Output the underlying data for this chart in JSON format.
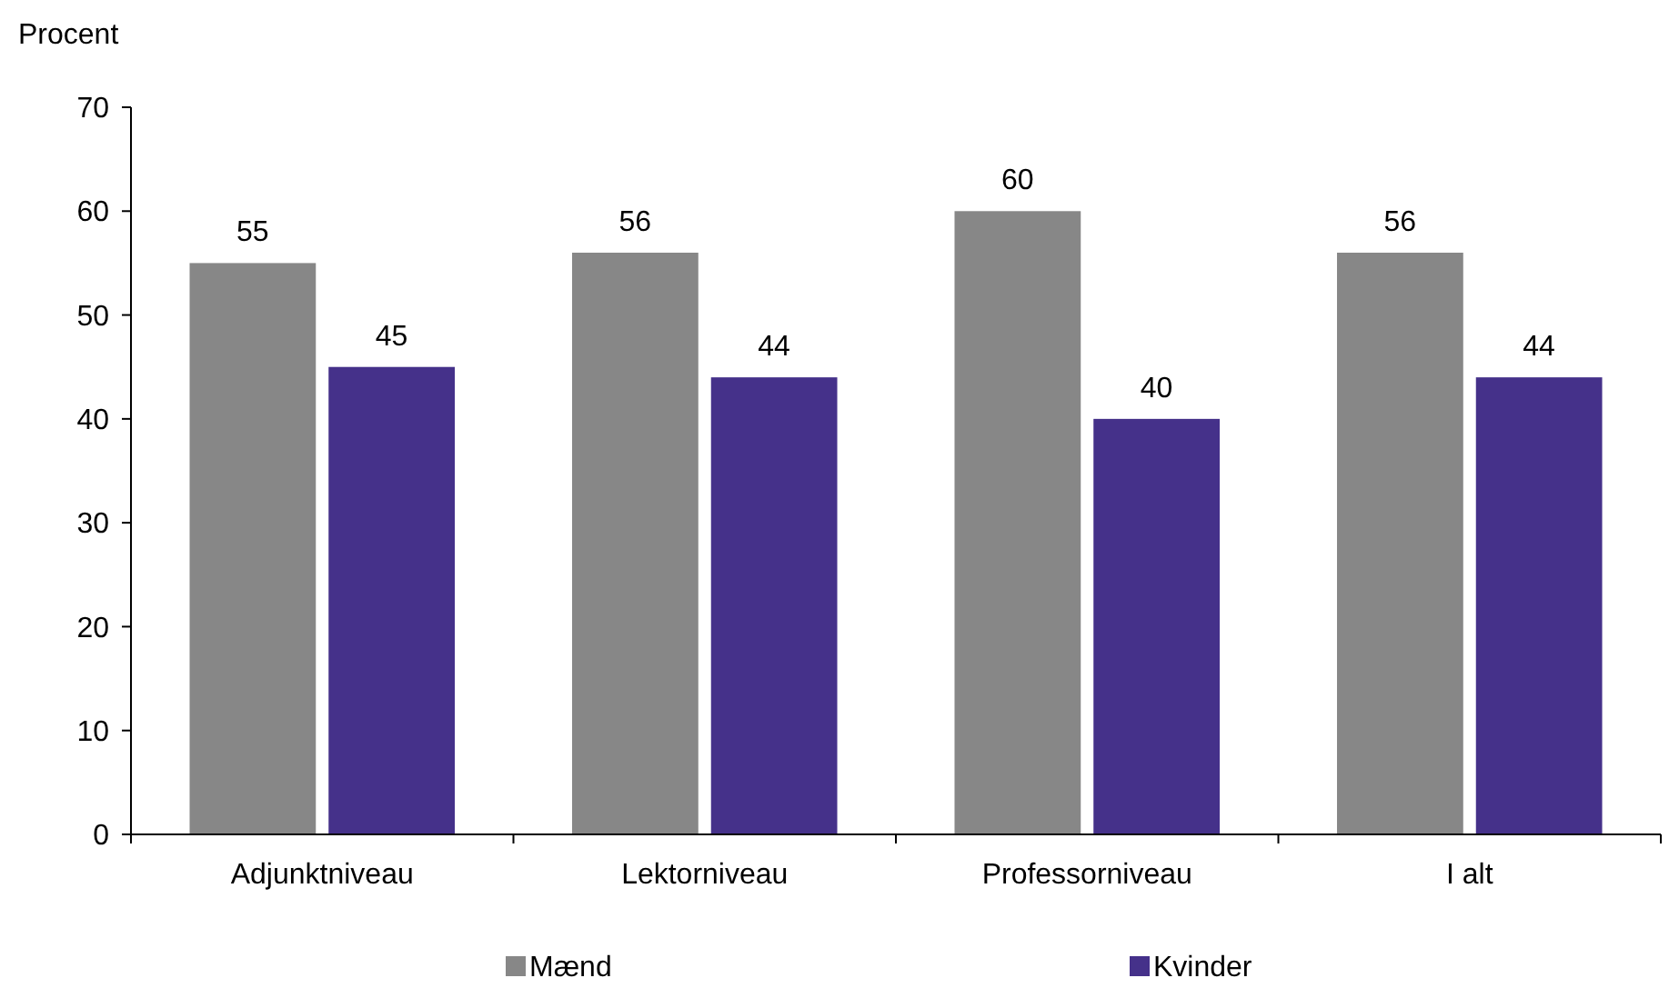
{
  "chart_data": {
    "type": "bar",
    "ylabel": "Procent",
    "categories": [
      "Adjunktniveau",
      "Lektorniveau",
      "Professorniveau",
      "I alt"
    ],
    "series": [
      {
        "name": "Mænd",
        "color": "#878787",
        "values": [
          55,
          56,
          60,
          56
        ]
      },
      {
        "name": "Kvinder",
        "color": "#45318a",
        "values": [
          45,
          44,
          40,
          44
        ]
      }
    ],
    "ylim": [
      0,
      70
    ],
    "yticks": [
      0,
      10,
      20,
      30,
      40,
      50,
      60,
      70
    ],
    "grid": false,
    "legend": "bottom",
    "data_labels": true
  }
}
